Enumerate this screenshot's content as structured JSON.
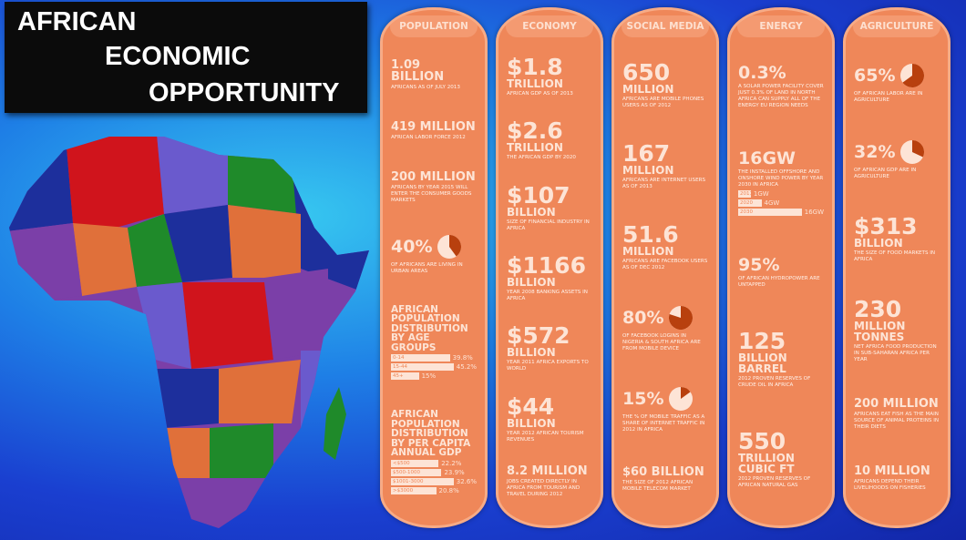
{
  "title": [
    "AFRICAN",
    "ECONOMIC",
    "OPPORTUNITY"
  ],
  "columns": [
    {
      "heading": "POPULATION",
      "items": [
        {
          "big": "1.09 BILLION",
          "small": "AFRICANS AS OF JULY 2013"
        },
        {
          "big": "419 MILLION",
          "small": "AFRICAN LABOR FORCE 2012"
        },
        {
          "big": "200 MILLION",
          "small": "AFRICANS BY YEAR 2015 WILL ENTER THE CONSUMER GOODS MARKETS"
        },
        {
          "big": "40%",
          "small": "OF AFRICANS ARE LIVING IN URBAN AREAS",
          "pie": 40
        },
        {
          "big": "AFRICAN POPULATION DISTRIBUTION BY AGE GROUPS",
          "bars": [
            {
              "label": "0-14",
              "value": 39.8,
              "value_label": "39.8%"
            },
            {
              "label": "15-44",
              "value": 45.2,
              "value_label": "45.2%"
            },
            {
              "label": "45+",
              "value": 15,
              "value_label": "15%"
            }
          ]
        },
        {
          "big": "AFRICAN POPULATION DISTRIBUTION BY PER CAPITA ANNUAL GDP",
          "bars": [
            {
              "label": "<$500",
              "value": 22.2,
              "value_label": "22.2%"
            },
            {
              "label": "$500-1000",
              "value": 23.9,
              "value_label": "23.9%"
            },
            {
              "label": "$1001-3000",
              "value": 32.6,
              "value_label": "32.6%"
            },
            {
              "label": ">$3000",
              "value": 20.8,
              "value_label": "20.8%"
            }
          ]
        }
      ]
    },
    {
      "heading": "ECONOMY",
      "items": [
        {
          "big": "$1.8",
          "unit": "TRILLION",
          "small": "AFRICAN GDP AS OF 2013"
        },
        {
          "big": "$2.6",
          "unit": "TRILLION",
          "small": "THE AFRICAN GDP BY 2020"
        },
        {
          "big": "$107",
          "unit": "BILLION",
          "small": "SIZE OF FINANCIAL INDUSTRY IN AFRICA"
        },
        {
          "big": "$1166",
          "unit": "BILLION",
          "small": "YEAR 2008 BANKING ASSETS IN AFRICA"
        },
        {
          "big": "$572",
          "unit": "BILLION",
          "small": "YEAR 2011 AFRICA EXPORTS TO WORLD"
        },
        {
          "big": "$44",
          "unit": "BILLION",
          "small": "YEAR 2012 AFRICAN TOURISM REVENUES"
        },
        {
          "big": "8.2 MILLION",
          "small": "JOBS CREATED DIRECTLY IN AFRICA FROM TOURISM AND TRAVEL DURING 2012"
        }
      ]
    },
    {
      "heading": "SOCIAL MEDIA",
      "items": [
        {
          "big": "650",
          "unit": "MILLION",
          "small": "AFRICANS ARE MOBILE PHONES USERS AS OF 2012"
        },
        {
          "big": "167",
          "unit": "MILLION",
          "small": "AFRICANS ARE INTERNET USERS AS OF 2013"
        },
        {
          "big": "51.6",
          "unit": "MILLION",
          "small": "AFRICANS ARE FACEBOOK USERS AS OF DEC 2012"
        },
        {
          "big": "80%",
          "small": "OF FACEBOOK LOGINS IN NIGERIA & SOUTH AFRICA ARE FROM MOBILE DEVICE",
          "pie": 80
        },
        {
          "big": "15%",
          "small": "THE % OF MOBILE TRAFFIC AS A SHARE OF INTERNET TRAFFIC IN 2012 IN AFRICA",
          "pie": 15
        },
        {
          "big": "$60 BILLION",
          "small": "THE SIZE OF 2012 AFRICAN MOBILE TELECOM MARKET"
        }
      ]
    },
    {
      "heading": "ENERGY",
      "items": [
        {
          "big": "0.3%",
          "small": "A SOLAR POWER FACILITY COVER JUST 0.3% OF LAND IN NORTH AFRICA CAN SUPPLY ALL OF THE ENERGY EU REGION NEEDS"
        },
        {
          "big": "16GW",
          "small": "THE INSTALLED OFFSHORE AND ONSHORE WIND POWER BY YEAR 2030 IN AFRICA",
          "bars": [
            {
              "label": "2011",
              "value": 1,
              "value_label": "1GW"
            },
            {
              "label": "2020",
              "value": 4,
              "value_label": "4GW"
            },
            {
              "label": "2030",
              "value": 16,
              "value_label": "16GW"
            }
          ]
        },
        {
          "big": "95%",
          "small": "OF AFRICAN HYDROPOWER ARE UNTAPPED"
        },
        {
          "big": "125",
          "unit": "BILLION BARREL",
          "small": "2012 PROVEN RESERVES OF CRUDE OIL IN AFRICA"
        },
        {
          "big": "550",
          "unit": "TRILLION CUBIC FT",
          "small": "2012 PROVEN RESERVES OF AFRICAN NATURAL GAS"
        }
      ]
    },
    {
      "heading": "AGRICULTURE",
      "items": [
        {
          "big": "65%",
          "small": "OF AFRICAN LABOR ARE IN AGRICULTURE",
          "pie": 65
        },
        {
          "big": "32%",
          "small": "OF AFRICAN GDP ARE IN AGRICULTURE",
          "pie": 32
        },
        {
          "big": "$313",
          "unit": "BILLION",
          "small": "THE SIZE OF FOOD MARKETS IN AFRICA"
        },
        {
          "big": "230",
          "unit": "MILLION TONNES",
          "small": "NET AFRICA FOOD PRODUCTION IN SUB-SAHARAN AFRICA PER YEAR"
        },
        {
          "big": "200 MILLION",
          "small": "AFRICANS EAT FISH AS THE MAIN SOURCE OF ANIMAL PROTEINS IN THEIR DIETS"
        },
        {
          "big": "10 MILLION",
          "small": "AFRICANS DEPEND THEIR LIVELIHOODS ON FISHERIES"
        }
      ]
    }
  ]
}
